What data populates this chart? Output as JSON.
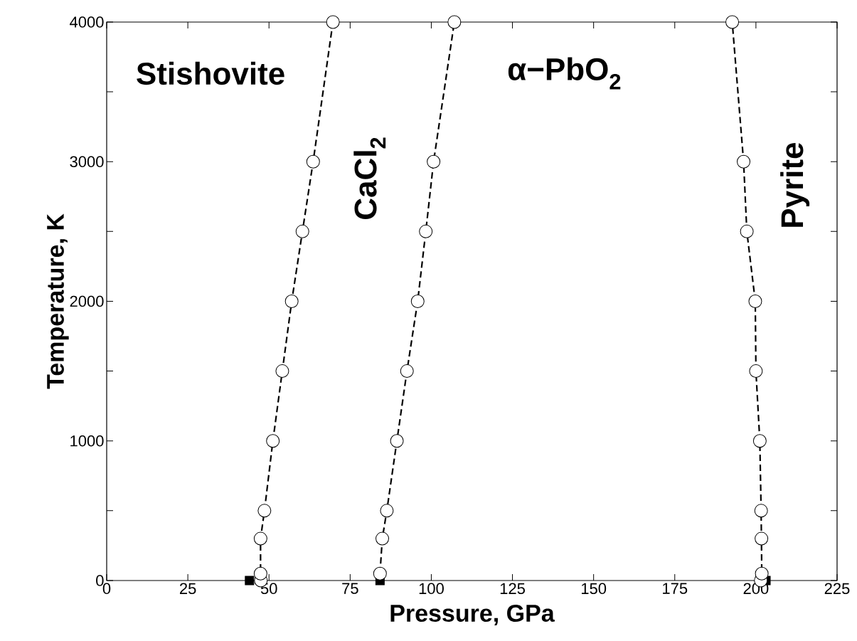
{
  "chart_data": {
    "type": "line",
    "xlabel": "Pressure, GPa",
    "ylabel": "Temperature, K",
    "annotations": [
      "Stishovite",
      "α−PbO$_{2}$",
      "CaCl$_{2}$",
      "Pyrite"
    ],
    "series": [
      {
        "color": "#000000",
        "marker": "circle",
        "line_style": "dashed",
        "x": [
          47.5,
          47.4,
          47.4,
          48.6,
          51.2,
          54.1,
          57.0,
          60.3,
          63.6,
          69.7
        ],
        "values": [
          0,
          50,
          300,
          500,
          1000,
          1500,
          2000,
          2500,
          3000,
          4000
        ]
      },
      {
        "color": "#000000",
        "marker": "circle",
        "line_style": "dashed",
        "x": [
          84.2,
          84.9,
          86.3,
          89.4,
          92.5,
          95.8,
          98.3,
          100.7,
          107.1
        ],
        "values": [
          50,
          300,
          500,
          1000,
          1500,
          2000,
          2500,
          3000,
          4000
        ]
      },
      {
        "color": "#000000",
        "marker": "circle",
        "line_style": "dashed",
        "x": [
          201.5,
          201.8,
          201.7,
          201.6,
          201.2,
          200.0,
          199.8,
          197.2,
          196.2,
          192.7
        ],
        "values": [
          0,
          50,
          300,
          500,
          1000,
          1500,
          2000,
          2500,
          3000,
          4000
        ]
      },
      {
        "type": "scatter",
        "color": "#000000",
        "marker": "square",
        "x": [
          44,
          84.2,
          203.1
        ],
        "values": [
          0,
          0,
          0
        ]
      }
    ],
    "xlim": [
      0,
      225
    ],
    "ylim": [
      0,
      4000
    ],
    "xticks": [
      0,
      25,
      50,
      75,
      100,
      125,
      150,
      175,
      200,
      225
    ],
    "yticks": [
      0,
      {
        "value": 500,
        "label": null
      },
      1000,
      {
        "value": 1500,
        "label": null
      },
      2000,
      {
        "value": 2500,
        "label": null
      },
      3000,
      {
        "value": 3500,
        "label": null
      },
      4000
    ]
  }
}
